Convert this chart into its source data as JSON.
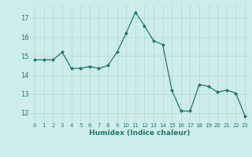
{
  "x": [
    0,
    1,
    2,
    3,
    4,
    5,
    6,
    7,
    8,
    9,
    10,
    11,
    12,
    13,
    14,
    15,
    16,
    17,
    18,
    19,
    20,
    21,
    22,
    23
  ],
  "y": [
    14.8,
    14.8,
    14.8,
    15.2,
    14.35,
    14.35,
    14.45,
    14.35,
    14.5,
    15.2,
    16.2,
    17.3,
    16.6,
    15.8,
    15.6,
    13.2,
    12.1,
    12.1,
    13.5,
    13.4,
    13.1,
    13.2,
    13.05,
    11.85
  ],
  "xlabel": "Humidex (Indice chaleur)",
  "ylim": [
    11.5,
    17.7
  ],
  "yticks": [
    12,
    13,
    14,
    15,
    16,
    17
  ],
  "xticks": [
    0,
    1,
    2,
    3,
    4,
    5,
    6,
    7,
    8,
    9,
    10,
    11,
    12,
    13,
    14,
    15,
    16,
    17,
    18,
    19,
    20,
    21,
    22,
    23
  ],
  "line_color": "#1a7a6e",
  "marker_color": "#1a7a6e",
  "bg_color": "#ceecea",
  "grid_color": "#aed8d4",
  "tick_color": "#1a7a6e"
}
